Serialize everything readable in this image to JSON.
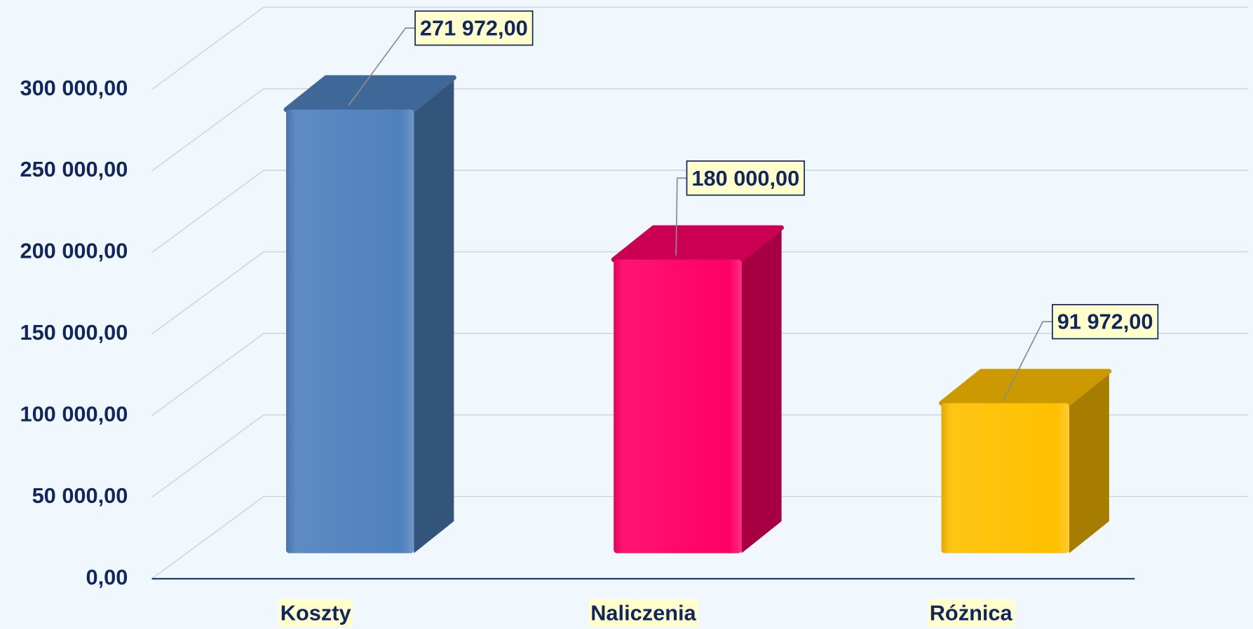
{
  "chart_data": {
    "type": "bar3d",
    "categories": [
      "Koszty",
      "Naliczenia",
      "Różnica"
    ],
    "values": [
      271972,
      180000,
      91972
    ],
    "value_labels": [
      "271 972,00",
      "180 000,00",
      "91 972,00"
    ],
    "colors": [
      "#4f81bd",
      "#ff0066",
      "#ffc000"
    ],
    "ylim": [
      0,
      300000
    ],
    "yticks": [
      {
        "value": 0,
        "label": "0,00"
      },
      {
        "value": 50000,
        "label": "50 000,00"
      },
      {
        "value": 100000,
        "label": "100 000,00"
      },
      {
        "value": 150000,
        "label": "150 000,00"
      },
      {
        "value": 200000,
        "label": "200 000,00"
      },
      {
        "value": 250000,
        "label": "250 000,00"
      },
      {
        "value": 300000,
        "label": "300 000,00"
      }
    ],
    "grid": true
  }
}
